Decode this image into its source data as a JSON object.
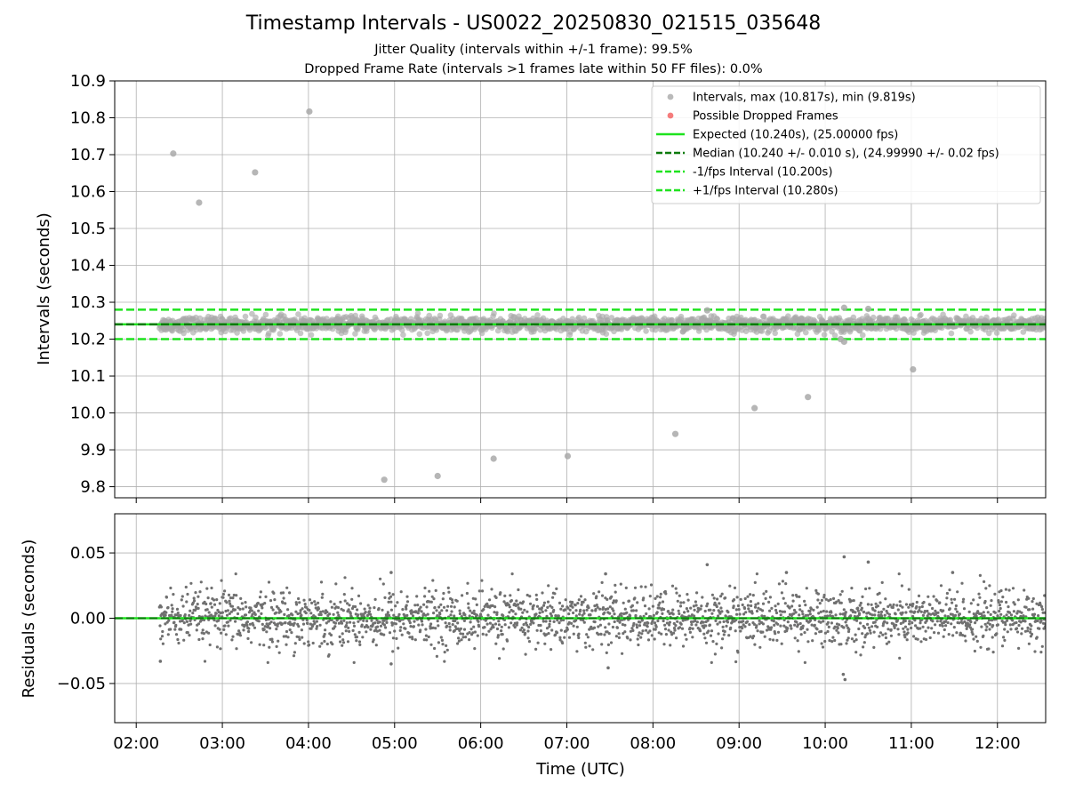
{
  "chart_data": [
    {
      "type": "scatter",
      "title": "Timestamp Intervals - US0022_20250830_021515_035648",
      "subtitle_lines": [
        "Jitter Quality (intervals within +/-1 frame): 99.5%",
        "Dropped Frame Rate (intervals >1 frames late within 50 FF files): 0.0%"
      ],
      "xlabel": "",
      "ylabel": "Intervals (seconds)",
      "x_unit": "hours UTC",
      "xlim": [
        1.75,
        12.56
      ],
      "ylim": [
        9.77,
        10.9
      ],
      "x_ticks": [
        2,
        3,
        4,
        5,
        6,
        7,
        8,
        9,
        10,
        11,
        12
      ],
      "y_ticks": [
        9.8,
        9.9,
        10.0,
        10.1,
        10.2,
        10.3,
        10.4,
        10.5,
        10.6,
        10.7,
        10.8,
        10.9
      ],
      "y_tick_labels": [
        "9.8",
        "9.9",
        "10.0",
        "10.1",
        "10.2",
        "10.3",
        "10.4",
        "10.5",
        "10.6",
        "10.7",
        "10.8",
        "10.9"
      ],
      "grid": true,
      "legend_position": "top-right",
      "legend": [
        {
          "label": "Intervals, max (10.817s), min (9.819s)",
          "kind": "marker",
          "color": "#a9a9a9"
        },
        {
          "label": "Possible Dropped Frames",
          "kind": "marker",
          "color": "#f25b5b"
        },
        {
          "label": "Expected (10.240s), (25.00000 fps)",
          "kind": "solid",
          "color": "#1ee31e"
        },
        {
          "label": "Median (10.240 +/- 0.010 s), (24.99990 +/- 0.02 fps)",
          "kind": "dashed",
          "color": "#0b7a0b"
        },
        {
          "label": "-1/fps Interval (10.200s)",
          "kind": "dashed",
          "color": "#1ee31e"
        },
        {
          "label": "+1/fps Interval (10.280s)",
          "kind": "dashed",
          "color": "#1ee31e"
        }
      ],
      "lines": {
        "expected": 10.24,
        "median": 10.24,
        "minus_one_frame": 10.2,
        "plus_one_frame": 10.28
      },
      "band": {
        "x_start": 2.27,
        "x_end": 12.56,
        "center": 10.24,
        "spread": 0.016
      },
      "outliers": [
        {
          "x": 2.43,
          "y": 10.703
        },
        {
          "x": 2.73,
          "y": 10.57
        },
        {
          "x": 3.38,
          "y": 10.652
        },
        {
          "x": 4.01,
          "y": 10.817
        },
        {
          "x": 4.88,
          "y": 9.819
        },
        {
          "x": 5.5,
          "y": 9.829
        },
        {
          "x": 6.15,
          "y": 9.876
        },
        {
          "x": 7.01,
          "y": 9.883
        },
        {
          "x": 8.26,
          "y": 9.943
        },
        {
          "x": 9.18,
          "y": 10.013
        },
        {
          "x": 9.8,
          "y": 10.043
        },
        {
          "x": 11.02,
          "y": 10.118
        },
        {
          "x": 10.22,
          "y": 10.285
        },
        {
          "x": 10.5,
          "y": 10.282
        },
        {
          "x": 8.63,
          "y": 10.278
        },
        {
          "x": 10.22,
          "y": 10.193
        },
        {
          "x": 10.18,
          "y": 10.2
        }
      ],
      "colors": {
        "intervals": "#a9a9a9",
        "expected": "#1ee31e",
        "median": "#0b7a0b",
        "frame_bounds": "#1ee31e",
        "dropped": "#f25b5b"
      }
    },
    {
      "type": "scatter",
      "ylabel": "Residuals (seconds)",
      "xlabel": "Time (UTC)",
      "xlim": [
        1.75,
        12.56
      ],
      "ylim": [
        -0.08,
        0.08
      ],
      "x_ticks": [
        2,
        3,
        4,
        5,
        6,
        7,
        8,
        9,
        10,
        11,
        12
      ],
      "x_tick_labels": [
        "02:00",
        "03:00",
        "04:00",
        "05:00",
        "06:00",
        "07:00",
        "08:00",
        "09:00",
        "10:00",
        "11:00",
        "12:00"
      ],
      "y_ticks": [
        -0.05,
        0.0,
        0.05
      ],
      "y_tick_labels": [
        "−0.05",
        "0.00",
        "0.05"
      ],
      "grid": true,
      "zero_line": 0.0,
      "band": {
        "x_start": 2.27,
        "x_end": 12.56,
        "spread": 0.011
      },
      "outliers": [
        {
          "x": 8.63,
          "y": 0.041
        },
        {
          "x": 10.22,
          "y": 0.047
        },
        {
          "x": 10.5,
          "y": 0.043
        },
        {
          "x": 10.21,
          "y": -0.043
        },
        {
          "x": 10.23,
          "y": -0.047
        },
        {
          "x": 4.96,
          "y": 0.035
        },
        {
          "x": 4.96,
          "y": -0.035
        },
        {
          "x": 7.48,
          "y": -0.038
        },
        {
          "x": 11.48,
          "y": 0.035
        },
        {
          "x": 9.55,
          "y": 0.035
        },
        {
          "x": 2.28,
          "y": -0.033
        },
        {
          "x": 7.45,
          "y": 0.034
        }
      ],
      "colors": {
        "residuals": "#707070",
        "zero": "#1ee31e",
        "median": "#0b7a0b"
      }
    }
  ]
}
